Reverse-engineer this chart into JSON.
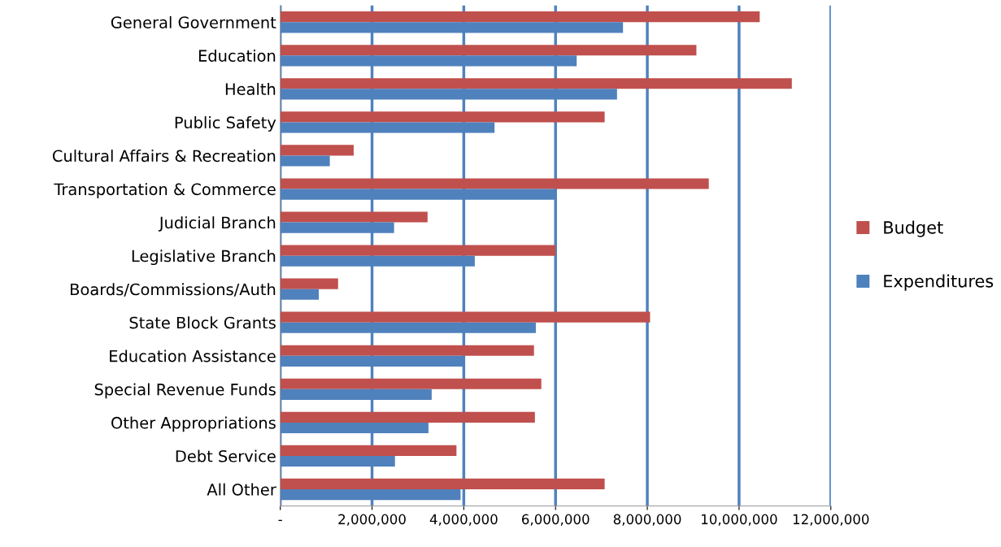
{
  "chart_data": {
    "type": "bar",
    "orientation": "horizontal",
    "categories": [
      "General Government",
      "Education",
      "Health",
      "Public Safety",
      "Cultural Affairs & Recreation",
      "Transportation & Commerce",
      "Judicial Branch",
      "Legislative Branch",
      "Boards/Commissions/Auth",
      "State Block Grants",
      "Education Assistance",
      "Special Revenue Funds",
      "Other Appropriations",
      "Debt Service",
      "All Other"
    ],
    "series": [
      {
        "name": "Budget",
        "color": "#c0504d",
        "values": [
          10450000,
          9070000,
          11150000,
          7070000,
          1600000,
          9340000,
          3210000,
          6000000,
          1260000,
          8060000,
          5530000,
          5690000,
          5550000,
          3840000,
          7070000
        ]
      },
      {
        "name": "Expenditures",
        "color": "#4f81bd",
        "values": [
          7470000,
          6460000,
          7340000,
          4670000,
          1080000,
          6010000,
          2480000,
          4240000,
          840000,
          5570000,
          3990000,
          3300000,
          3230000,
          2500000,
          3930000
        ]
      }
    ],
    "xlim": [
      0,
      12000000
    ],
    "xticks": [
      {
        "value": 0,
        "label": "-"
      },
      {
        "value": 2000000,
        "label": "2,000,000"
      },
      {
        "value": 4000000,
        "label": "4,000,000"
      },
      {
        "value": 6000000,
        "label": "6,000,000"
      },
      {
        "value": 8000000,
        "label": "8,000,000"
      },
      {
        "value": 10000000,
        "label": "10,000,000"
      },
      {
        "value": 12000000,
        "label": "12,000,000"
      }
    ],
    "grid": "x",
    "legend": "right"
  }
}
